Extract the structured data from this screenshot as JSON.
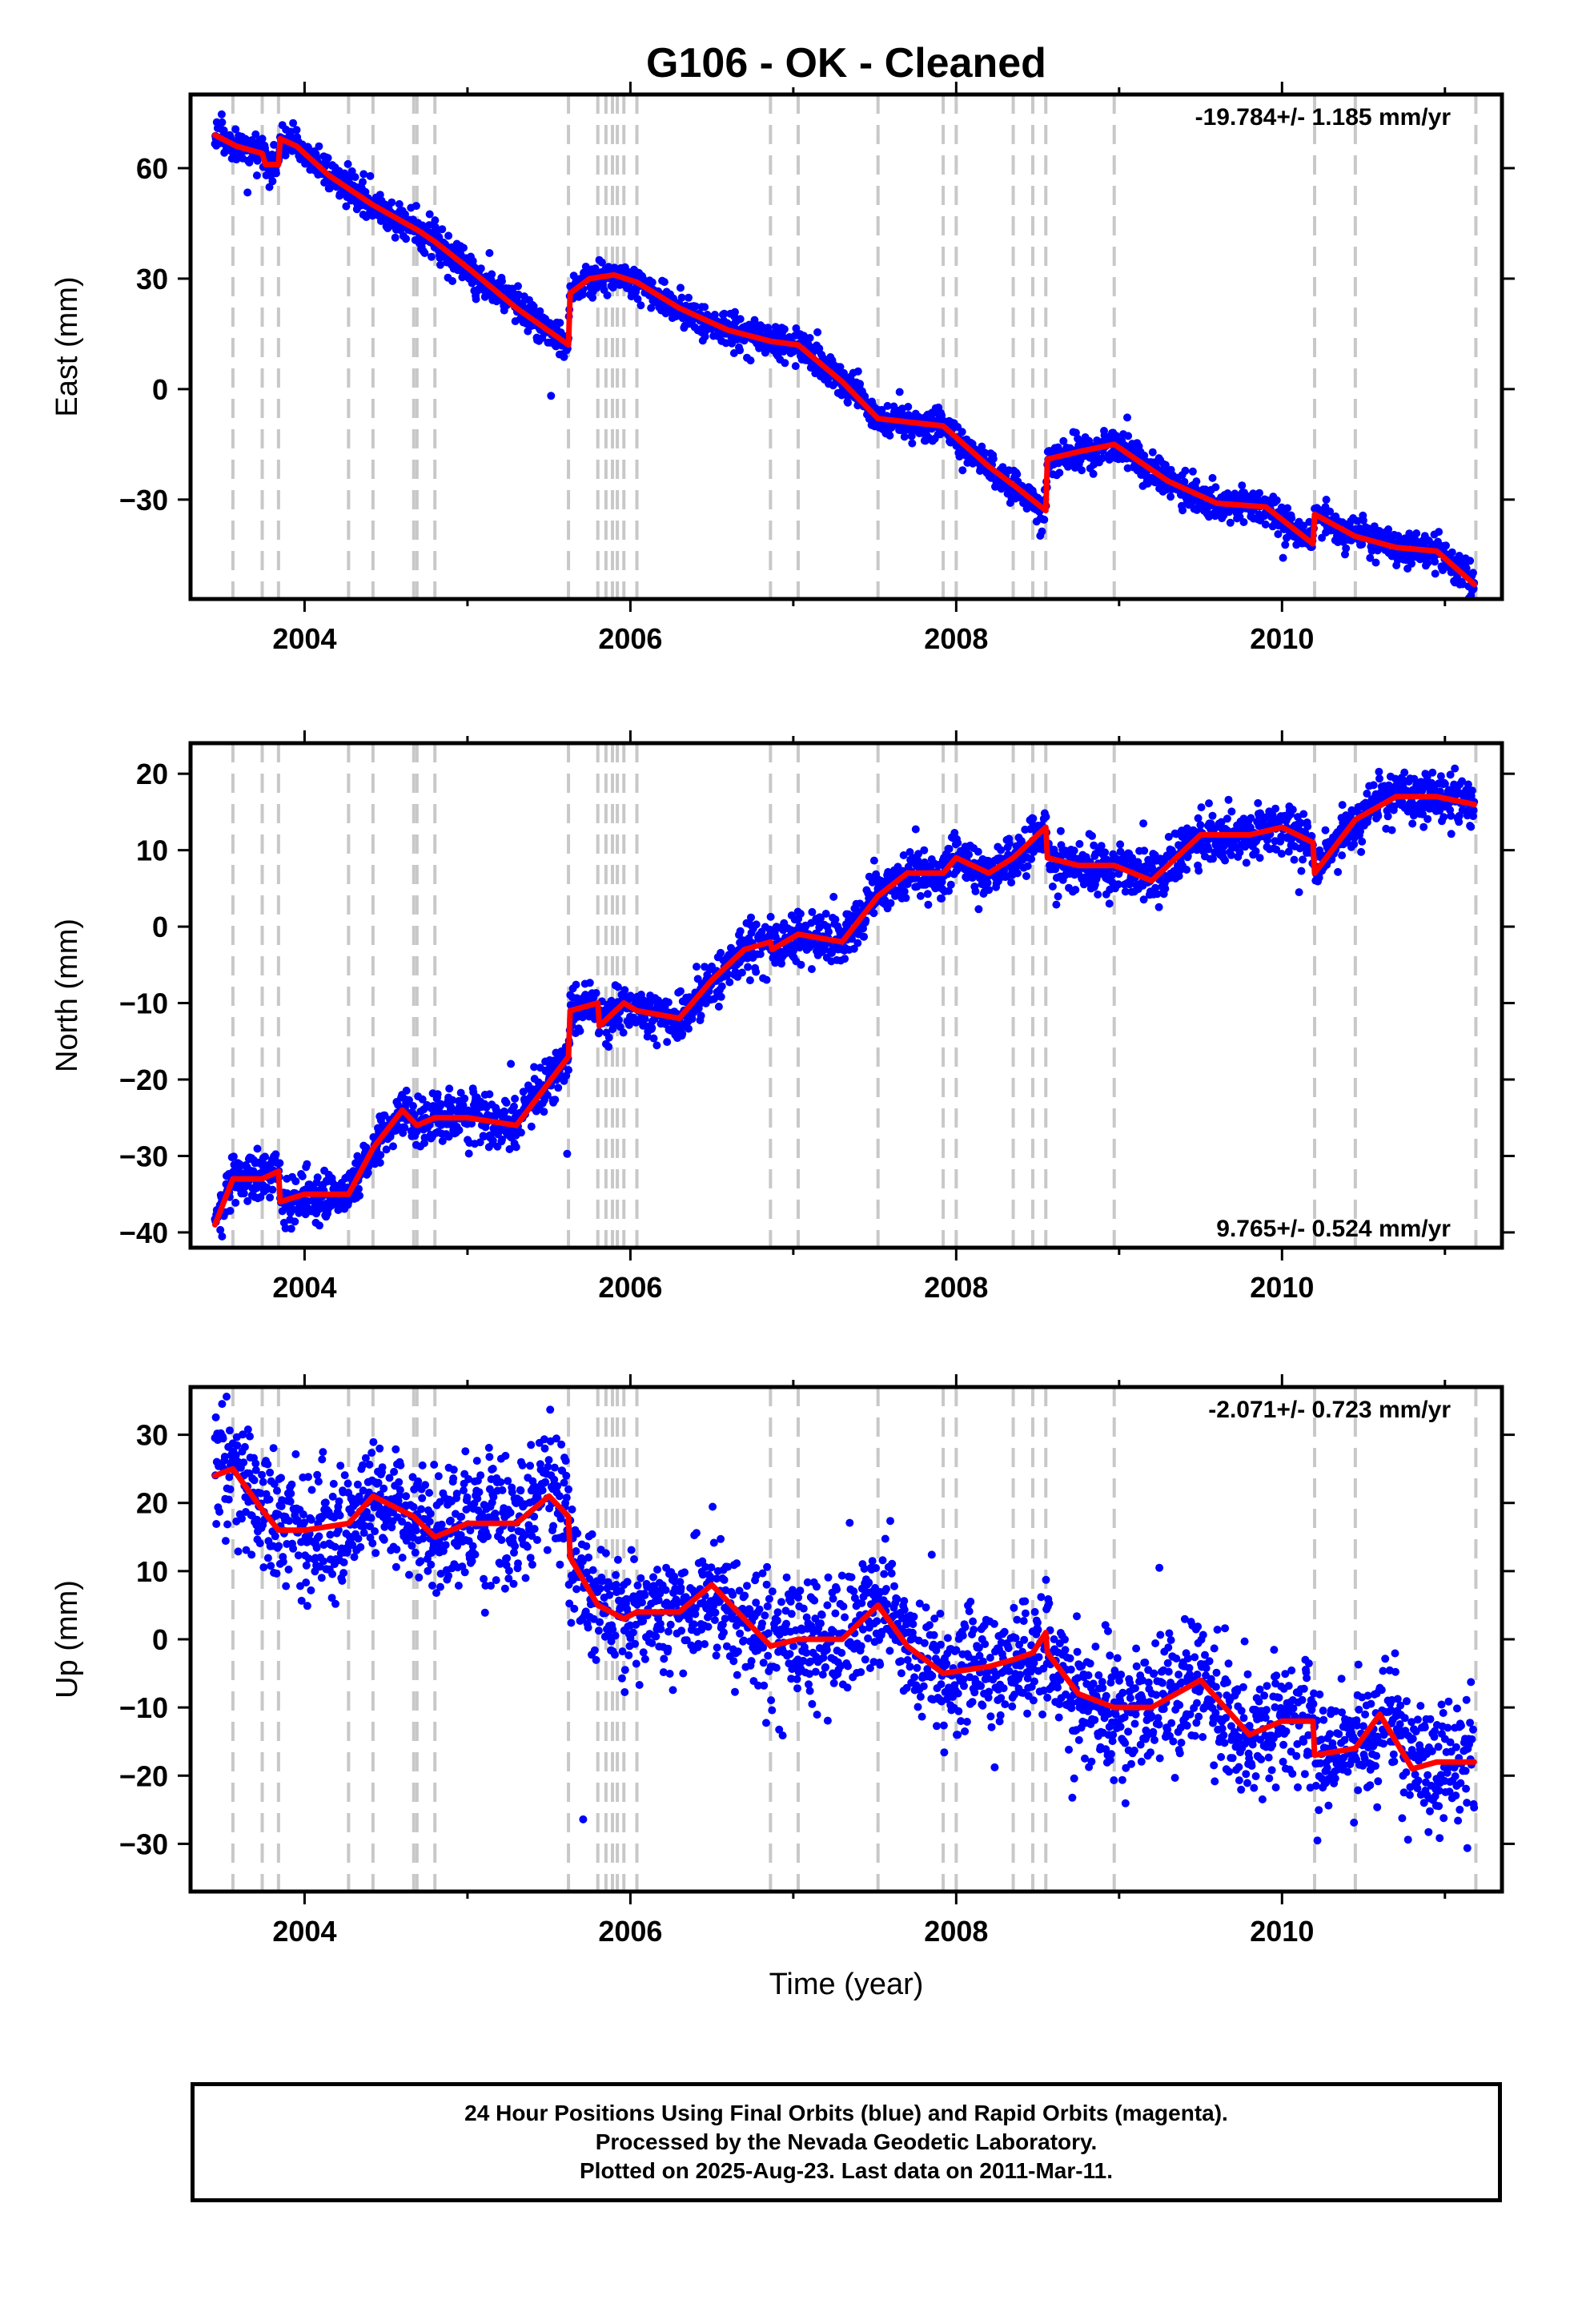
{
  "title": "G106  - OK - Cleaned",
  "caption": {
    "line1": "24 Hour Positions Using Final Orbits (blue) and Rapid Orbits (magenta).",
    "line2": "Processed by the Nevada Geodetic Laboratory.",
    "line3": "Plotted on 2025-Aug-23. Last data on 2011-Mar-11."
  },
  "colors": {
    "points": "#0000ff",
    "model": "#ff0000",
    "breaks": "#c8c8c8"
  },
  "chart_data": [
    {
      "type": "scatter",
      "ylabel": "East (mm)",
      "xlabel": "",
      "rate_label": "-19.784+/- 1.185 mm/yr",
      "rate_position": "top-right",
      "xlim": [
        2003.3,
        2011.35
      ],
      "ylim": [
        -57,
        80
      ],
      "xticks": [
        2004,
        2006,
        2008,
        2010
      ],
      "yticks": [
        -30,
        0,
        30,
        60
      ],
      "xtick_labels": [
        "2004",
        "2006",
        "2008",
        "2010"
      ],
      "ytick_labels": [
        "−30",
        "0",
        "30",
        "60"
      ],
      "break_years": [
        2003.56,
        2003.74,
        2003.84,
        2004.27,
        2004.42,
        2004.67,
        2004.69,
        2004.8,
        2005.62,
        2005.8,
        2005.85,
        2005.89,
        2005.92,
        2005.96,
        2006.04,
        2006.86,
        2007.03,
        2007.52,
        2007.92,
        2008.0,
        2008.35,
        2008.47,
        2008.55,
        2008.97,
        2010.2,
        2010.45,
        2011.19
      ],
      "model": [
        [
          2003.45,
          69
        ],
        [
          2003.58,
          66
        ],
        [
          2003.74,
          64
        ],
        [
          2003.76,
          61
        ],
        [
          2003.84,
          61
        ],
        [
          2003.85,
          68
        ],
        [
          2003.95,
          66
        ],
        [
          2004.15,
          58
        ],
        [
          2004.42,
          50
        ],
        [
          2004.7,
          43
        ],
        [
          2004.8,
          40
        ],
        [
          2005.0,
          33
        ],
        [
          2005.3,
          22
        ],
        [
          2005.62,
          12
        ],
        [
          2005.63,
          26
        ],
        [
          2005.75,
          30
        ],
        [
          2005.9,
          31
        ],
        [
          2006.04,
          29
        ],
        [
          2006.3,
          22
        ],
        [
          2006.6,
          16
        ],
        [
          2006.86,
          13
        ],
        [
          2007.03,
          12
        ],
        [
          2007.3,
          2
        ],
        [
          2007.52,
          -8
        ],
        [
          2007.92,
          -10
        ],
        [
          2008.2,
          -21
        ],
        [
          2008.35,
          -26
        ],
        [
          2008.55,
          -33
        ],
        [
          2008.56,
          -19
        ],
        [
          2008.75,
          -17
        ],
        [
          2008.97,
          -15
        ],
        [
          2009.3,
          -25
        ],
        [
          2009.6,
          -31
        ],
        [
          2009.9,
          -32
        ],
        [
          2010.19,
          -42
        ],
        [
          2010.2,
          -34
        ],
        [
          2010.45,
          -40
        ],
        [
          2010.7,
          -43
        ],
        [
          2010.95,
          -44
        ],
        [
          2011.18,
          -53
        ]
      ],
      "scatter_spread": 2.2
    },
    {
      "type": "scatter",
      "ylabel": "North (mm)",
      "xlabel": "",
      "rate_label": "9.765+/- 0.524 mm/yr",
      "rate_position": "bottom-right",
      "xlim": [
        2003.3,
        2011.35
      ],
      "ylim": [
        -42,
        24
      ],
      "xticks": [
        2004,
        2006,
        2008,
        2010
      ],
      "yticks": [
        -40,
        -30,
        -20,
        -10,
        0,
        10,
        20
      ],
      "xtick_labels": [
        "2004",
        "2006",
        "2008",
        "2010"
      ],
      "ytick_labels": [
        "−40",
        "−30",
        "−20",
        "−10",
        "0",
        "10",
        "20"
      ],
      "break_years": [
        2003.56,
        2003.74,
        2003.84,
        2004.27,
        2004.42,
        2004.67,
        2004.69,
        2004.8,
        2005.62,
        2005.8,
        2005.85,
        2005.89,
        2005.92,
        2005.96,
        2006.04,
        2006.86,
        2007.03,
        2007.52,
        2007.92,
        2008.0,
        2008.35,
        2008.47,
        2008.55,
        2008.97,
        2010.2,
        2010.45,
        2011.19
      ],
      "model": [
        [
          2003.45,
          -39
        ],
        [
          2003.56,
          -33
        ],
        [
          2003.74,
          -33
        ],
        [
          2003.84,
          -32
        ],
        [
          2003.85,
          -36
        ],
        [
          2004.0,
          -35
        ],
        [
          2004.27,
          -35
        ],
        [
          2004.42,
          -29
        ],
        [
          2004.6,
          -24
        ],
        [
          2004.69,
          -26
        ],
        [
          2004.8,
          -25
        ],
        [
          2005.0,
          -25
        ],
        [
          2005.3,
          -26
        ],
        [
          2005.62,
          -17
        ],
        [
          2005.63,
          -11
        ],
        [
          2005.8,
          -10
        ],
        [
          2005.81,
          -13
        ],
        [
          2005.96,
          -10
        ],
        [
          2006.04,
          -11
        ],
        [
          2006.3,
          -12
        ],
        [
          2006.5,
          -7
        ],
        [
          2006.7,
          -3
        ],
        [
          2006.86,
          -2
        ],
        [
          2006.87,
          -3
        ],
        [
          2007.03,
          -1
        ],
        [
          2007.3,
          -2
        ],
        [
          2007.52,
          4
        ],
        [
          2007.7,
          7
        ],
        [
          2007.92,
          7
        ],
        [
          2008.0,
          9
        ],
        [
          2008.2,
          7
        ],
        [
          2008.35,
          9
        ],
        [
          2008.55,
          13
        ],
        [
          2008.56,
          9
        ],
        [
          2008.75,
          8
        ],
        [
          2008.97,
          8
        ],
        [
          2009.2,
          6
        ],
        [
          2009.5,
          12
        ],
        [
          2009.8,
          12
        ],
        [
          2010.0,
          13
        ],
        [
          2010.19,
          11
        ],
        [
          2010.2,
          7
        ],
        [
          2010.45,
          14
        ],
        [
          2010.7,
          17
        ],
        [
          2010.95,
          17
        ],
        [
          2011.18,
          16
        ]
      ],
      "scatter_spread": 1.6
    },
    {
      "type": "scatter",
      "ylabel": "Up (mm)",
      "xlabel": "Time (year)",
      "rate_label": "-2.071+/- 0.723 mm/yr",
      "rate_position": "top-right",
      "xlim": [
        2003.3,
        2011.35
      ],
      "ylim": [
        -37,
        37
      ],
      "xticks": [
        2004,
        2006,
        2008,
        2010
      ],
      "yticks": [
        -30,
        -20,
        -10,
        0,
        10,
        20,
        30
      ],
      "xtick_labels": [
        "2004",
        "2006",
        "2008",
        "2010"
      ],
      "ytick_labels": [
        "−30",
        "−20",
        "−10",
        "0",
        "10",
        "20",
        "30"
      ],
      "break_years": [
        2003.56,
        2003.74,
        2003.84,
        2004.27,
        2004.42,
        2004.67,
        2004.69,
        2004.8,
        2005.62,
        2005.8,
        2005.85,
        2005.89,
        2005.92,
        2005.96,
        2006.04,
        2006.86,
        2007.03,
        2007.52,
        2007.92,
        2008.0,
        2008.35,
        2008.47,
        2008.55,
        2008.97,
        2010.2,
        2010.45,
        2011.19
      ],
      "model": [
        [
          2003.45,
          24
        ],
        [
          2003.56,
          25
        ],
        [
          2003.74,
          19
        ],
        [
          2003.84,
          16
        ],
        [
          2004.0,
          16
        ],
        [
          2004.27,
          17
        ],
        [
          2004.42,
          21
        ],
        [
          2004.67,
          18
        ],
        [
          2004.8,
          15
        ],
        [
          2005.0,
          17
        ],
        [
          2005.3,
          17
        ],
        [
          2005.5,
          21
        ],
        [
          2005.62,
          18
        ],
        [
          2005.63,
          12
        ],
        [
          2005.8,
          5
        ],
        [
          2005.96,
          3
        ],
        [
          2006.04,
          4
        ],
        [
          2006.3,
          4
        ],
        [
          2006.5,
          8
        ],
        [
          2006.7,
          3
        ],
        [
          2006.86,
          -1
        ],
        [
          2007.03,
          0
        ],
        [
          2007.3,
          0
        ],
        [
          2007.52,
          5
        ],
        [
          2007.7,
          -1
        ],
        [
          2007.92,
          -5
        ],
        [
          2008.2,
          -4
        ],
        [
          2008.35,
          -3
        ],
        [
          2008.47,
          -2
        ],
        [
          2008.55,
          1
        ],
        [
          2008.56,
          -2
        ],
        [
          2008.75,
          -8
        ],
        [
          2008.97,
          -10
        ],
        [
          2009.2,
          -10
        ],
        [
          2009.5,
          -6
        ],
        [
          2009.8,
          -14
        ],
        [
          2010.0,
          -12
        ],
        [
          2010.19,
          -12
        ],
        [
          2010.2,
          -17
        ],
        [
          2010.45,
          -16
        ],
        [
          2010.6,
          -11
        ],
        [
          2010.8,
          -19
        ],
        [
          2010.95,
          -18
        ],
        [
          2011.18,
          -18
        ]
      ],
      "scatter_spread": 4.5
    }
  ]
}
